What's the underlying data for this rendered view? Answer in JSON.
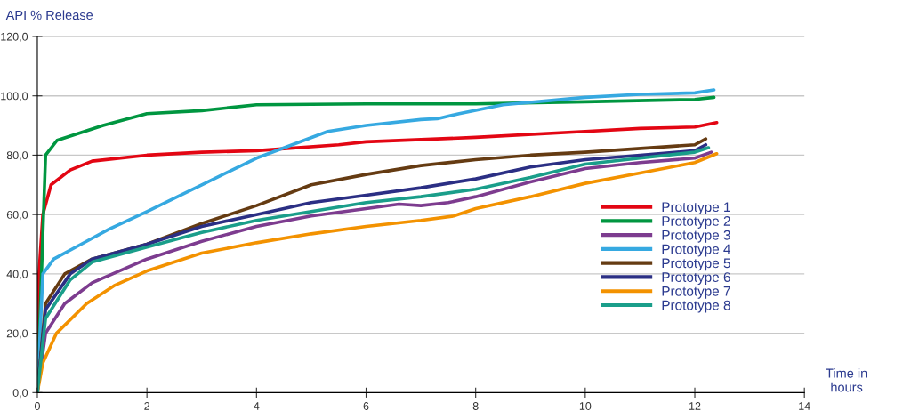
{
  "chart_data": {
    "type": "line",
    "ylabel": "API % Release",
    "xlabel": "Time in\nhours",
    "xlim": [
      0,
      14
    ],
    "ylim": [
      0,
      120
    ],
    "xticks": [
      0,
      2,
      4,
      6,
      8,
      10,
      12,
      14
    ],
    "yticks": [
      {
        "value": 0,
        "label": "0,0"
      },
      {
        "value": 20,
        "label": "20,0"
      },
      {
        "value": 40,
        "label": "40,0"
      },
      {
        "value": 60,
        "label": "60,0"
      },
      {
        "value": 80,
        "label": "80,0"
      },
      {
        "value": 100,
        "label": "100,0"
      },
      {
        "value": 120,
        "label": "120,0"
      }
    ],
    "grid": "y",
    "legend": "right",
    "marker": "none",
    "line_style": "solid",
    "series": [
      {
        "name": "Prototype 1",
        "color": "#e30613",
        "x": [
          0,
          0.03,
          0.1,
          0.25,
          0.6,
          1,
          2,
          3,
          4,
          5.5,
          6,
          8,
          10,
          11,
          12,
          12.4
        ],
        "values": [
          0,
          40,
          60,
          70,
          75,
          78,
          80,
          81,
          81.5,
          83.5,
          84.5,
          86,
          88,
          89,
          89.5,
          91
        ]
      },
      {
        "name": "Prototype 2",
        "color": "#009640",
        "x": [
          0,
          0.15,
          0.36,
          1.2,
          2,
          3,
          4,
          6,
          8,
          10,
          12,
          12.35
        ],
        "values": [
          0,
          80,
          85,
          90,
          94,
          95,
          97,
          97.3,
          97.3,
          98,
          98.8,
          99.5
        ]
      },
      {
        "name": "Prototype 3",
        "color": "#7d3c8f",
        "x": [
          0,
          0.15,
          0.5,
          1,
          2,
          3,
          4,
          5,
          6,
          6.6,
          7,
          7.5,
          8,
          9,
          10,
          11,
          12,
          12.3
        ],
        "values": [
          0,
          20,
          30,
          37,
          45,
          51,
          56,
          59.5,
          62,
          63.5,
          63,
          64,
          66,
          71,
          75.5,
          77.5,
          79,
          81
        ]
      },
      {
        "name": "Prototype 4",
        "color": "#36a9e1",
        "x": [
          0,
          0.1,
          0.3,
          0.8,
          1.3,
          2,
          3,
          4,
          5.3,
          6,
          7,
          7.3,
          7.7,
          8.5,
          10,
          11,
          12,
          12.35
        ],
        "values": [
          0,
          40,
          45,
          50,
          55,
          61,
          70,
          79,
          88,
          90,
          92,
          92.3,
          94,
          97,
          99.5,
          100.5,
          101,
          102
        ]
      },
      {
        "name": "Prototype 5",
        "color": "#653b12",
        "x": [
          0,
          0.15,
          0.5,
          1,
          2,
          3,
          4,
          5,
          6,
          7,
          8,
          9,
          10,
          12,
          12.2
        ],
        "values": [
          0,
          30,
          40,
          45,
          50,
          57,
          63,
          70,
          73.5,
          76.5,
          78.5,
          80,
          81,
          83.5,
          85.5
        ]
      },
      {
        "name": "Prototype 6",
        "color": "#2b2f84",
        "x": [
          0,
          0.15,
          0.6,
          1,
          2,
          3,
          4,
          5,
          6,
          7,
          8,
          9,
          10,
          11,
          12,
          12.2
        ],
        "values": [
          0,
          28,
          40,
          45,
          50,
          56,
          60,
          64,
          66.5,
          69,
          72,
          76,
          78.5,
          80,
          81.5,
          83.5
        ]
      },
      {
        "name": "Prototype 7",
        "color": "#f39200",
        "x": [
          0,
          0.1,
          0.35,
          0.9,
          1.4,
          2,
          3,
          4,
          5,
          6,
          7,
          7.6,
          8,
          9,
          10,
          11,
          12,
          12.4
        ],
        "values": [
          0,
          10,
          20,
          30,
          36,
          41,
          47,
          50.5,
          53.5,
          56,
          58,
          59.5,
          62,
          66,
          70.5,
          74,
          77.5,
          80.5
        ]
      },
      {
        "name": "Prototype 8",
        "color": "#1a9e8a",
        "x": [
          0,
          0.15,
          0.6,
          1,
          2,
          3,
          4,
          5,
          6,
          7,
          8,
          9,
          10,
          11,
          12,
          12.25
        ],
        "values": [
          0,
          25,
          38,
          44,
          49,
          54,
          58,
          61,
          64,
          66,
          68.5,
          72.5,
          77,
          79,
          81,
          82.5
        ]
      }
    ]
  }
}
